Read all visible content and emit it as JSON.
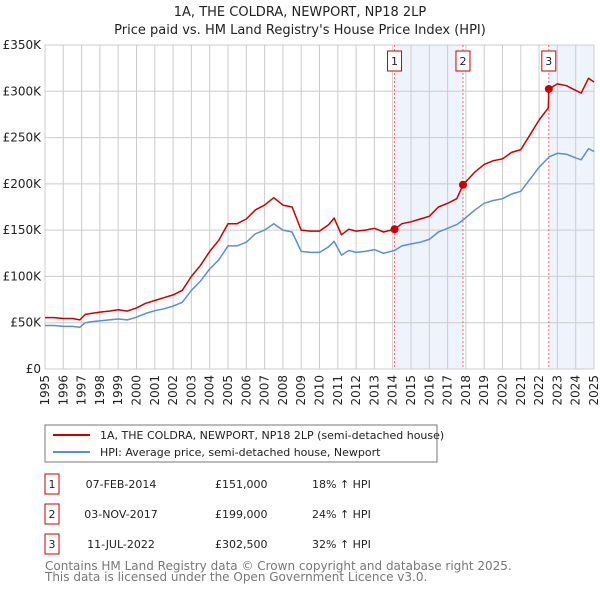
{
  "chart_data": {
    "type": "line",
    "title": "1A, THE COLDRA, NEWPORT, NP18 2LP",
    "subtitle": "Price paid vs. HM Land Registry's House Price Index (HPI)",
    "xlabel": "",
    "ylabel": "",
    "xlim": [
      1995,
      2025
    ],
    "ylim": [
      0,
      350000
    ],
    "grid": true,
    "x_ticks": [
      "1995",
      "1996",
      "1997",
      "1998",
      "1999",
      "2000",
      "2001",
      "2002",
      "2003",
      "2004",
      "2005",
      "2006",
      "2007",
      "2008",
      "2009",
      "2010",
      "2011",
      "2012",
      "2013",
      "2014",
      "2015",
      "2016",
      "2017",
      "2018",
      "2019",
      "2020",
      "2021",
      "2022",
      "2023",
      "2024",
      "2025"
    ],
    "y_ticks": [
      {
        "value": 0,
        "label": "£0"
      },
      {
        "value": 50000,
        "label": "£50K"
      },
      {
        "value": 100000,
        "label": "£100K"
      },
      {
        "value": 150000,
        "label": "£150K"
      },
      {
        "value": 200000,
        "label": "£200K"
      },
      {
        "value": 250000,
        "label": "£250K"
      },
      {
        "value": 300000,
        "label": "£300K"
      },
      {
        "value": 350000,
        "label": "£350K"
      }
    ],
    "x": [
      1995,
      1995.5,
      1996,
      1996.5,
      1996.9,
      1997.2,
      1997.5,
      1998,
      1998.5,
      1999,
      1999.5,
      2000,
      2000.5,
      2001,
      2001.5,
      2002,
      2002.5,
      2003,
      2003.5,
      2004,
      2004.5,
      2005,
      2005.5,
      2006,
      2006.5,
      2007,
      2007.5,
      2008,
      2008.5,
      2009,
      2009.5,
      2010,
      2010.5,
      2010.8,
      2011.2,
      2011.6,
      2012,
      2012.5,
      2013,
      2013.5,
      2014.1,
      2014.5,
      2015,
      2015.5,
      2016,
      2016.5,
      2017,
      2017.5,
      2017.84,
      2018.5,
      2019,
      2019.5,
      2020,
      2020.5,
      2021,
      2021.5,
      2022,
      2022.5,
      2022.53,
      2023,
      2023.5,
      2024,
      2024.3,
      2024.7,
      2025
    ],
    "series": [
      {
        "name": "1A, THE COLDRA, NEWPORT, NP18 2LP (semi-detached house)",
        "color": "#cc0000",
        "values": [
          55500,
          55500,
          54500,
          54500,
          53000,
          59000,
          60000,
          61500,
          62500,
          64000,
          62500,
          66000,
          71000,
          74000,
          77000,
          80000,
          85000,
          100000,
          112000,
          127000,
          139000,
          157000,
          157000,
          162000,
          172000,
          177000,
          185000,
          177000,
          175000,
          150000,
          149000,
          149000,
          156000,
          163000,
          145000,
          151000,
          149000,
          150000,
          152000,
          148000,
          151000,
          157000,
          159000,
          162000,
          165000,
          175000,
          179000,
          184000,
          199000,
          213000,
          221000,
          225000,
          227000,
          234000,
          237000,
          253000,
          269000,
          282000,
          302500,
          308000,
          306000,
          301000,
          298000,
          314000,
          310000
        ]
      },
      {
        "name": "HPI: Average price, semi-detached house, Newport",
        "color": "#5b8fd0",
        "values": [
          47000,
          47000,
          46000,
          46000,
          45000,
          50000,
          51000,
          52000,
          53000,
          54000,
          53000,
          56000,
          60000,
          63000,
          65000,
          68000,
          72000,
          85000,
          95000,
          108000,
          118000,
          133000,
          133000,
          137000,
          146000,
          150000,
          157000,
          150000,
          148000,
          127000,
          126000,
          126000,
          132000,
          138000,
          123000,
          128000,
          126000,
          127000,
          129000,
          125000,
          128000,
          133000,
          135000,
          137000,
          140000,
          148000,
          152000,
          156000,
          161000,
          172000,
          179000,
          182000,
          184000,
          189000,
          192000,
          205000,
          218000,
          228000,
          229000,
          233000,
          232000,
          228000,
          226000,
          238000,
          235000
        ]
      }
    ],
    "sales": [
      {
        "id": "1",
        "x": 2014.1,
        "value": 151000,
        "date": "07-FEB-2014",
        "price": "£151,000",
        "hpi": "18% ↑ HPI"
      },
      {
        "id": "2",
        "x": 2017.84,
        "value": 199000,
        "date": "03-NOV-2017",
        "price": "£199,000",
        "hpi": "24% ↑ HPI"
      },
      {
        "id": "3",
        "x": 2022.53,
        "value": 302500,
        "date": "11-JUL-2022",
        "price": "£302,500",
        "hpi": "32% ↑ HPI"
      }
    ],
    "shaded_ranges": [
      [
        2014.1,
        2017.84
      ],
      [
        2022.53,
        2025
      ]
    ],
    "legend_position": "bottom"
  },
  "footer": {
    "line1": "Contains HM Land Registry data © Crown copyright and database right 2025.",
    "line2": "This data is licensed under the Open Government Licence v3.0."
  },
  "colors": {
    "grid": "#cccccc",
    "shade": "#eef3fc",
    "marker_line": "#ff6666"
  }
}
